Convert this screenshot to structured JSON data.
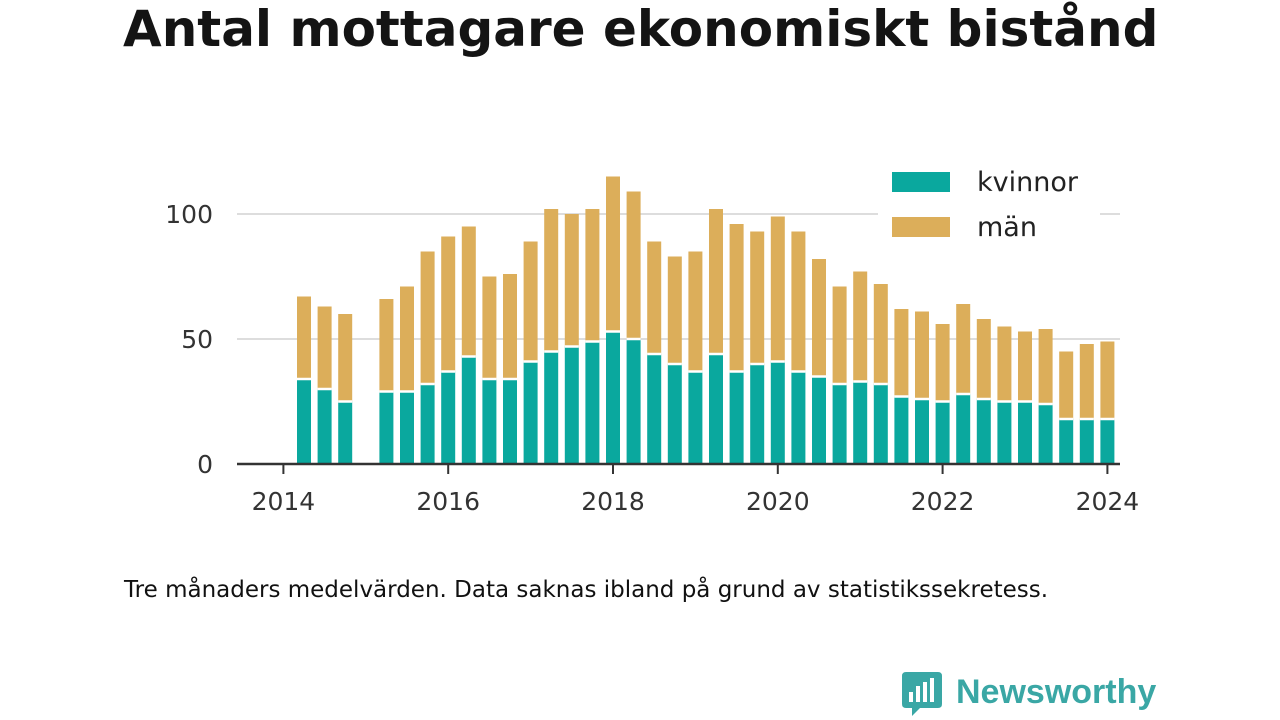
{
  "title": "Antal mottagare ekonomiskt bistånd",
  "caption": "Tre månaders medelvärden. Data saknas ibland på grund av statistikssekretess.",
  "logo": {
    "text": "Newsworthy",
    "color": "#3aa7a5",
    "icon": "bar-chart-speech-bubble-icon"
  },
  "colors": {
    "kvinnor": "#0aa89e",
    "man": "#dcae5a",
    "axis": "#333333",
    "grid": "#dddddd"
  },
  "chart_data": {
    "type": "bar",
    "stacked": true,
    "xlabel": "",
    "ylabel": "",
    "ylim": [
      0,
      115
    ],
    "yticks": [
      0,
      50,
      100
    ],
    "xticks": [
      "2014",
      "2016",
      "2018",
      "2020",
      "2022",
      "2024"
    ],
    "x_unit": "quarter",
    "grid": true,
    "legend_position": "top-right",
    "categories": [
      "2014Q2",
      "2014Q3",
      "2014Q4",
      "2015Q1",
      "2015Q2",
      "2015Q3",
      "2015Q4",
      "2016Q1",
      "2016Q2",
      "2016Q3",
      "2016Q4",
      "2017Q1",
      "2017Q2",
      "2017Q3",
      "2017Q4",
      "2018Q1",
      "2018Q2",
      "2018Q3",
      "2018Q4",
      "2019Q1",
      "2019Q2",
      "2019Q3",
      "2019Q4",
      "2020Q1",
      "2020Q2",
      "2020Q3",
      "2020Q4",
      "2021Q1",
      "2021Q2",
      "2021Q3",
      "2021Q4",
      "2022Q1",
      "2022Q2",
      "2022Q3",
      "2022Q4",
      "2023Q1",
      "2023Q2",
      "2023Q3",
      "2023Q4",
      "2024Q1"
    ],
    "series": [
      {
        "name": "kvinnor",
        "values": [
          34,
          30,
          25,
          null,
          29,
          29,
          32,
          37,
          43,
          34,
          34,
          41,
          45,
          47,
          49,
          53,
          50,
          44,
          40,
          37,
          44,
          37,
          40,
          41,
          37,
          35,
          32,
          33,
          32,
          27,
          26,
          25,
          28,
          26,
          25,
          25,
          24,
          18,
          18,
          18
        ]
      },
      {
        "name": "män",
        "values": [
          33,
          33,
          35,
          null,
          37,
          42,
          53,
          54,
          52,
          41,
          42,
          48,
          57,
          53,
          53,
          62,
          59,
          45,
          43,
          48,
          58,
          59,
          53,
          58,
          56,
          47,
          39,
          44,
          40,
          35,
          35,
          31,
          36,
          32,
          30,
          28,
          30,
          27,
          30,
          31
        ]
      }
    ]
  }
}
